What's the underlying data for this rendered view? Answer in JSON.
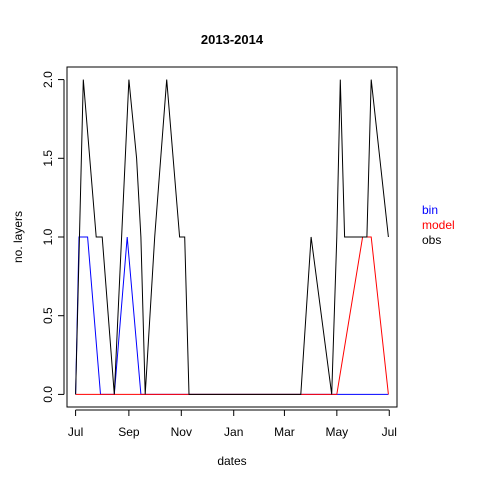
{
  "chart_data": {
    "type": "line",
    "title": "2013-2014",
    "xlabel": "dates",
    "ylabel": "no. layers",
    "x_ticks": [
      "Jul",
      "Sep",
      "Nov",
      "Jan",
      "Mar",
      "May",
      "Jul"
    ],
    "x_tick_dates": [
      "2013-07-01",
      "2013-09-01",
      "2013-11-01",
      "2014-01-01",
      "2014-03-01",
      "2014-05-01",
      "2014-07-01"
    ],
    "xlim": [
      "2013-06-21",
      "2014-07-10"
    ],
    "y_ticks": [
      "0.0",
      "0.5",
      "1.0",
      "1.5",
      "2.0"
    ],
    "y_tick_values": [
      0,
      0.5,
      1,
      1.5,
      2
    ],
    "ylim": [
      -0.08,
      2.08
    ],
    "grid": false,
    "legend_position": "right",
    "series": [
      {
        "name": "bin",
        "color": "#0000ff",
        "points": [
          [
            "2013-07-01",
            0
          ],
          [
            "2013-07-05",
            1
          ],
          [
            "2013-07-15",
            1
          ],
          [
            "2013-07-30",
            0
          ],
          [
            "2013-08-15",
            0
          ],
          [
            "2013-08-30",
            1
          ],
          [
            "2013-09-15",
            0
          ],
          [
            "2014-06-30",
            0
          ]
        ]
      },
      {
        "name": "model",
        "color": "#ff0000",
        "points": [
          [
            "2013-07-01",
            0
          ],
          [
            "2014-05-01",
            0
          ],
          [
            "2014-05-31",
            1
          ],
          [
            "2014-06-10",
            1
          ],
          [
            "2014-06-30",
            0
          ]
        ]
      },
      {
        "name": "obs",
        "color": "#000000",
        "points": [
          [
            "2013-07-01",
            0
          ],
          [
            "2013-07-10",
            2
          ],
          [
            "2013-07-25",
            1
          ],
          [
            "2013-08-01",
            1
          ],
          [
            "2013-08-15",
            0
          ],
          [
            "2013-09-01",
            2
          ],
          [
            "2013-09-10",
            1.5
          ],
          [
            "2013-09-15",
            1
          ],
          [
            "2013-09-20",
            0
          ],
          [
            "2013-10-01",
            1
          ],
          [
            "2013-10-15",
            2
          ],
          [
            "2013-10-30",
            1
          ],
          [
            "2013-11-05",
            1
          ],
          [
            "2013-11-10",
            0
          ],
          [
            "2014-03-20",
            0
          ],
          [
            "2014-04-01",
            1
          ],
          [
            "2014-04-25",
            0
          ],
          [
            "2014-05-01",
            1
          ],
          [
            "2014-05-05",
            2
          ],
          [
            "2014-05-10",
            1
          ],
          [
            "2014-06-05",
            1
          ],
          [
            "2014-06-10",
            2
          ],
          [
            "2014-06-30",
            1
          ]
        ]
      }
    ]
  }
}
